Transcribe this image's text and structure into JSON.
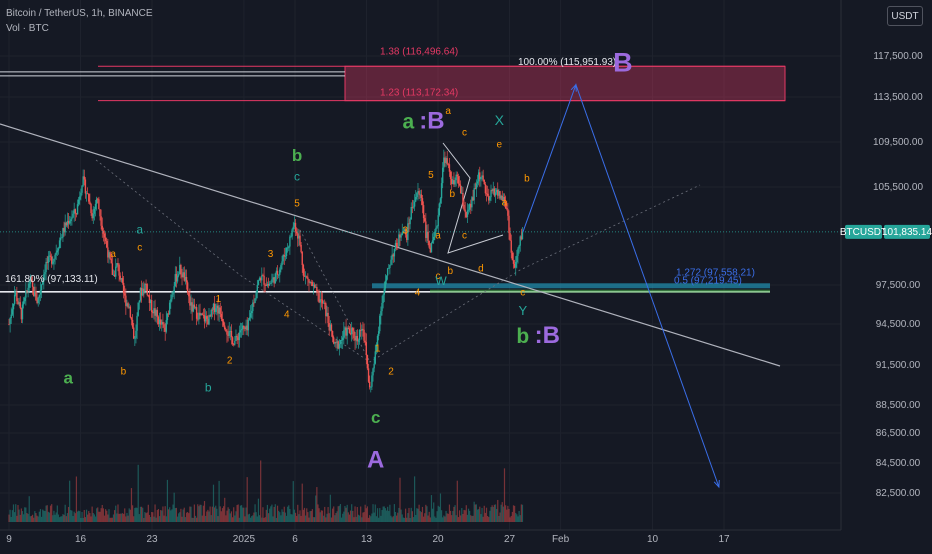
{
  "header": {
    "title": "Bitcoin / TetherUS, 1h, BINANCE",
    "indicator": "Vol · BTC",
    "currency_button": "USDT"
  },
  "colors": {
    "background": "#151924",
    "up": "#26a69a",
    "down": "#ef5350",
    "orange": "#ff9800",
    "green": "#4caf50",
    "teal": "#26a69a",
    "purple": "#9c6ade",
    "blue": "#3a6ee8",
    "cyan": "#22b3d8",
    "pink": "#e53964",
    "grey_line": "#b0b3bd",
    "white_line": "#d1d4dc"
  },
  "chart_data": {
    "type": "candlestick",
    "symbol_badge": "BTCUSDT",
    "last_price": 101835.14,
    "last_price_label": "101,835.14",
    "y_ticks": [
      {
        "v": 117500,
        "label": "117,500.00"
      },
      {
        "v": 113500,
        "label": "113,500.00"
      },
      {
        "v": 109500,
        "label": "109,500.00"
      },
      {
        "v": 105500,
        "label": "105,500.00"
      },
      {
        "v": 97500,
        "label": "97,500.00"
      },
      {
        "v": 94500,
        "label": "94,500.00"
      },
      {
        "v": 91500,
        "label": "91,500.00"
      },
      {
        "v": 88500,
        "label": "88,500.00"
      },
      {
        "v": 86500,
        "label": "86,500.00"
      },
      {
        "v": 84500,
        "label": "84,500.00"
      },
      {
        "v": 82500,
        "label": "82,500.00"
      }
    ],
    "x_ticks": [
      {
        "t": 9,
        "label": "9"
      },
      {
        "t": 16,
        "label": "16"
      },
      {
        "t": 23,
        "label": "23"
      },
      {
        "t": 32,
        "label": "2025"
      },
      {
        "t": 37,
        "label": "6"
      },
      {
        "t": 44,
        "label": "13"
      },
      {
        "t": 51,
        "label": "20"
      },
      {
        "t": 58,
        "label": "27"
      },
      {
        "t": 63,
        "label": "Feb"
      },
      {
        "t": 72,
        "label": "10"
      },
      {
        "t": 79,
        "label": "17"
      }
    ],
    "price_path": [
      [
        9,
        94500
      ],
      [
        9.6,
        97000
      ],
      [
        10.2,
        95200
      ],
      [
        11,
        97800
      ],
      [
        11.8,
        96200
      ],
      [
        12.6,
        99200
      ],
      [
        13.4,
        99800
      ],
      [
        14.1,
        101500
      ],
      [
        14.8,
        102800
      ],
      [
        15.6,
        103500
      ],
      [
        16.2,
        106200
      ],
      [
        16.8,
        104500
      ],
      [
        17.2,
        103100
      ],
      [
        17.6,
        104700
      ],
      [
        18.1,
        102400
      ],
      [
        18.6,
        100500
      ],
      [
        19.2,
        98200
      ],
      [
        19.6,
        99200
      ],
      [
        20.3,
        96500
      ],
      [
        20.8,
        95800
      ],
      [
        21.3,
        93200
      ],
      [
        21.8,
        96800
      ],
      [
        22.4,
        97600
      ],
      [
        22.8,
        96000
      ],
      [
        23.4,
        95200
      ],
      [
        23.8,
        94500
      ],
      [
        24.3,
        94000
      ],
      [
        24.8,
        96500
      ],
      [
        25.2,
        97800
      ],
      [
        25.7,
        98800
      ],
      [
        26.2,
        98000
      ],
      [
        26.8,
        95800
      ],
      [
        27.3,
        95400
      ],
      [
        27.8,
        95000
      ],
      [
        28.6,
        94800
      ],
      [
        29.2,
        96000
      ],
      [
        29.8,
        95200
      ],
      [
        30.6,
        93600
      ],
      [
        31.2,
        93200
      ],
      [
        31.7,
        94200
      ],
      [
        32.3,
        93900
      ],
      [
        32.9,
        96200
      ],
      [
        33.6,
        98200
      ],
      [
        34.4,
        97500
      ],
      [
        35.2,
        98300
      ],
      [
        35.9,
        99800
      ],
      [
        36.5,
        101200
      ],
      [
        36.9,
        102600
      ],
      [
        37.4,
        101300
      ],
      [
        37.9,
        98200
      ],
      [
        38.6,
        97600
      ],
      [
        39.3,
        96500
      ],
      [
        39.9,
        95800
      ],
      [
        40.4,
        94200
      ],
      [
        40.9,
        92800
      ],
      [
        41.4,
        93200
      ],
      [
        42.0,
        94000
      ],
      [
        42.6,
        93800
      ],
      [
        43.1,
        93400
      ],
      [
        43.6,
        94600
      ],
      [
        44.0,
        92000
      ],
      [
        44.3,
        89600
      ],
      [
        44.8,
        91800
      ],
      [
        45.4,
        95800
      ],
      [
        45.8,
        97400
      ],
      [
        46.4,
        99800
      ],
      [
        47.0,
        100800
      ],
      [
        47.5,
        102200
      ],
      [
        47.9,
        101400
      ],
      [
        48.4,
        103700
      ],
      [
        48.9,
        105000
      ],
      [
        49.4,
        104700
      ],
      [
        49.8,
        101800
      ],
      [
        50.3,
        100300
      ],
      [
        50.8,
        101800
      ],
      [
        51.2,
        104600
      ],
      [
        51.6,
        108300
      ],
      [
        52.1,
        106900
      ],
      [
        52.5,
        105600
      ],
      [
        52.9,
        106400
      ],
      [
        53.3,
        104700
      ],
      [
        53.8,
        103100
      ],
      [
        54.2,
        103900
      ],
      [
        54.6,
        105200
      ],
      [
        55.0,
        106700
      ],
      [
        55.5,
        105800
      ],
      [
        55.9,
        104200
      ],
      [
        56.4,
        105300
      ],
      [
        56.9,
        104900
      ],
      [
        57.4,
        104500
      ],
      [
        57.8,
        103500
      ],
      [
        58.2,
        99800
      ],
      [
        58.5,
        98800
      ],
      [
        58.9,
        100500
      ],
      [
        59.3,
        102100
      ]
    ],
    "volume_series": "hourly volume bars along the bottom of the pane",
    "zones": [
      {
        "label": "1.38 (116,496.64)",
        "price": 116496.64
      },
      {
        "label": "1.23 (113,172.34)",
        "price": 113172.34
      },
      {
        "label": "100.00% (115,951.93)",
        "price": 115951.93
      },
      {
        "label": "161.80% (97,133.11)",
        "price": 97133.11
      },
      {
        "label": "1.272 (97,558.21)",
        "price": 97558.21
      },
      {
        "label": "0.5 (97,219.45)",
        "price": 97219.45
      }
    ],
    "projection": [
      [
        59.3,
        101800
      ],
      [
        64.5,
        114700
      ],
      [
        70.6,
        99500
      ],
      [
        78.5,
        82900
      ]
    ],
    "wave_labels": [
      {
        "text": "b",
        "t": 37.2,
        "p": 107800,
        "size": 17,
        "color": "green"
      },
      {
        "text": "c",
        "t": 37.2,
        "p": 106100,
        "size": 12,
        "color": "teal"
      },
      {
        "text": "5",
        "t": 37.2,
        "p": 103900,
        "size": 10,
        "color": "orange"
      },
      {
        "text": "a",
        "t": 21.8,
        "p": 101700,
        "size": 12,
        "color": "teal"
      },
      {
        "text": "c",
        "t": 21.8,
        "p": 100300,
        "size": 10,
        "color": "orange"
      },
      {
        "text": "a",
        "t": 19.2,
        "p": 99800,
        "size": 10,
        "color": "orange"
      },
      {
        "text": "3",
        "t": 34.6,
        "p": 99800,
        "size": 10,
        "color": "orange"
      },
      {
        "text": "1",
        "t": 29.5,
        "p": 96200,
        "size": 10,
        "color": "orange"
      },
      {
        "text": "4",
        "t": 36.2,
        "p": 95000,
        "size": 10,
        "color": "orange"
      },
      {
        "text": "2",
        "t": 30.6,
        "p": 91600,
        "size": 10,
        "color": "orange"
      },
      {
        "text": "b",
        "t": 20.2,
        "p": 90800,
        "size": 10,
        "color": "orange"
      },
      {
        "text": "a",
        "t": 14.8,
        "p": 90100,
        "size": 17,
        "color": "green"
      },
      {
        "text": "b",
        "t": 28.5,
        "p": 89500,
        "size": 12,
        "color": "teal"
      },
      {
        "text": "1",
        "t": 45.1,
        "p": 92500,
        "size": 10,
        "color": "orange"
      },
      {
        "text": "2",
        "t": 46.4,
        "p": 90800,
        "size": 10,
        "color": "orange"
      },
      {
        "text": "c",
        "t": 44.9,
        "p": 87200,
        "size": 17,
        "color": "green"
      },
      {
        "text": "A",
        "t": 44.9,
        "p": 84200,
        "size": 24,
        "color": "purple"
      },
      {
        "text": "a",
        "t": 48.1,
        "p": 110700,
        "size": 21,
        "color": "green"
      },
      {
        "text": ":B",
        "t": 50.4,
        "p": 110700,
        "size": 24,
        "color": "purple"
      },
      {
        "text": "a",
        "t": 52.0,
        "p": 112000,
        "size": 10,
        "color": "orange"
      },
      {
        "text": "c",
        "t": 53.6,
        "p": 110100,
        "size": 10,
        "color": "orange"
      },
      {
        "text": "X",
        "t": 57.0,
        "p": 111000,
        "size": 14,
        "color": "teal"
      },
      {
        "text": "e",
        "t": 57.0,
        "p": 109000,
        "size": 10,
        "color": "orange"
      },
      {
        "text": "5",
        "t": 50.3,
        "p": 106300,
        "size": 10,
        "color": "orange"
      },
      {
        "text": "b",
        "t": 59.7,
        "p": 106000,
        "size": 10,
        "color": "orange"
      },
      {
        "text": "b",
        "t": 52.4,
        "p": 104700,
        "size": 10,
        "color": "orange"
      },
      {
        "text": "a",
        "t": 57.5,
        "p": 104000,
        "size": 10,
        "color": "orange"
      },
      {
        "text": "3",
        "t": 47.8,
        "p": 101700,
        "size": 10,
        "color": "orange"
      },
      {
        "text": "a",
        "t": 51.0,
        "p": 101300,
        "size": 10,
        "color": "orange"
      },
      {
        "text": "c",
        "t": 53.6,
        "p": 101300,
        "size": 10,
        "color": "orange"
      },
      {
        "text": "d",
        "t": 55.2,
        "p": 98600,
        "size": 10,
        "color": "orange"
      },
      {
        "text": "c",
        "t": 51.0,
        "p": 98000,
        "size": 10,
        "color": "orange"
      },
      {
        "text": "b",
        "t": 52.2,
        "p": 98400,
        "size": 10,
        "color": "orange"
      },
      {
        "text": "4",
        "t": 49.0,
        "p": 96700,
        "size": 10,
        "color": "orange"
      },
      {
        "text": "W",
        "t": 51.3,
        "p": 97500,
        "size": 12,
        "color": "teal"
      },
      {
        "text": "c",
        "t": 59.3,
        "p": 96700,
        "size": 10,
        "color": "orange"
      },
      {
        "text": "Y",
        "t": 59.3,
        "p": 95200,
        "size": 13,
        "color": "teal"
      },
      {
        "text": "b",
        "t": 59.3,
        "p": 93100,
        "size": 21,
        "color": "green"
      },
      {
        "text": ":B",
        "t": 61.7,
        "p": 93100,
        "size": 24,
        "color": "purple"
      },
      {
        "text": "B",
        "t": 69.1,
        "p": 116000,
        "size": 27,
        "color": "purple"
      }
    ]
  }
}
